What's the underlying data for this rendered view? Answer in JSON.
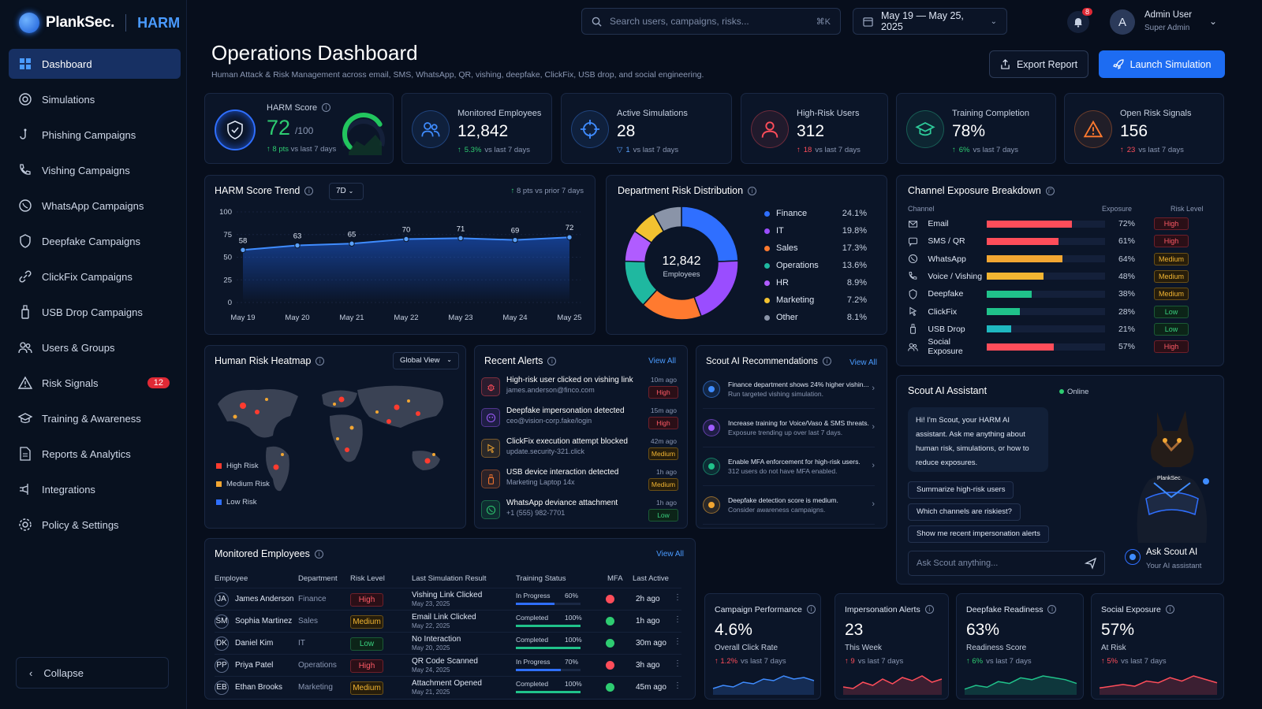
{
  "brand": {
    "name": "PlankSec.",
    "product": "HARM"
  },
  "sidebar": {
    "items": [
      {
        "label": "Dashboard",
        "icon": "grid-icon"
      },
      {
        "label": "Simulations",
        "icon": "target-icon"
      },
      {
        "label": "Phishing Campaigns",
        "icon": "hook-icon"
      },
      {
        "label": "Vishing Campaigns",
        "icon": "phone-icon"
      },
      {
        "label": "WhatsApp Campaigns",
        "icon": "whatsapp-icon"
      },
      {
        "label": "Deepfake Campaigns",
        "icon": "shield-icon"
      },
      {
        "label": "ClickFix Campaigns",
        "icon": "link-icon"
      },
      {
        "label": "USB Drop Campaigns",
        "icon": "usb-icon"
      },
      {
        "label": "Users & Groups",
        "icon": "users-icon"
      },
      {
        "label": "Risk Signals",
        "icon": "warning-icon",
        "badge": "12"
      },
      {
        "label": "Training & Awareness",
        "icon": "graduation-icon"
      },
      {
        "label": "Reports & Analytics",
        "icon": "report-icon"
      },
      {
        "label": "Integrations",
        "icon": "plug-icon"
      },
      {
        "label": "Policy & Settings",
        "icon": "gear-icon"
      }
    ],
    "collapse": "Collapse"
  },
  "topbar": {
    "search_placeholder": "Search users, campaigns, risks...",
    "shortcut": "⌘K",
    "date_range": "May 19 — May 25, 2025",
    "notifications": "8",
    "user_initial": "A",
    "user_name": "Admin User",
    "user_role": "Super Admin"
  },
  "header": {
    "title": "Operations Dashboard",
    "subtitle": "Human Attack & Risk Management across email, SMS, WhatsApp, QR, vishing, deepfake, ClickFix, USB drop, and social engineering.",
    "export": "Export Report",
    "launch": "Launch Simulation"
  },
  "kpis": {
    "harm": {
      "label": "HARM Score",
      "value": "72",
      "max": "/100",
      "delta": "8 pts",
      "delta_sub": "vs last 7 days"
    },
    "cards": [
      {
        "label": "Monitored Employees",
        "value": "12,842",
        "delta": "5.3%",
        "sub": "vs last 7 days",
        "dir": "up-g",
        "arrow": "↑",
        "icon": "users-icon",
        "color": "#3f8cff"
      },
      {
        "label": "Active Simulations",
        "value": "28",
        "delta": "1",
        "sub": "vs last 7 days",
        "dir": "dn-b",
        "arrow": "▽",
        "icon": "crosshair-icon",
        "color": "#3f8cff"
      },
      {
        "label": "High-Risk Users",
        "value": "312",
        "delta": "18",
        "sub": "vs last 7 days",
        "dir": "up-r",
        "arrow": "↑",
        "icon": "user-icon",
        "color": "#ff4d5a"
      },
      {
        "label": "Training Completion",
        "value": "78%",
        "delta": "6%",
        "sub": "vs last 7 days",
        "dir": "up-g",
        "arrow": "↑",
        "icon": "graduation-icon",
        "color": "#2ecc9a"
      },
      {
        "label": "Open Risk Signals",
        "value": "156",
        "delta": "23",
        "sub": "vs last 7 days",
        "dir": "up-r",
        "arrow": "↑",
        "icon": "warning-icon",
        "color": "#ff7a2f"
      }
    ]
  },
  "trend": {
    "title": "HARM Score Trend",
    "period": "7D",
    "note": "8 pts vs prior 7 days"
  },
  "chart_data": [
    {
      "type": "area",
      "title": "HARM Score Trend",
      "categories": [
        "May 19",
        "May 20",
        "May 21",
        "May 22",
        "May 23",
        "May 24",
        "May 25"
      ],
      "values": [
        58,
        63,
        65,
        70,
        71,
        69,
        72
      ],
      "ylim": [
        0,
        100
      ],
      "yticks": [
        0,
        25,
        50,
        75,
        100
      ],
      "grid": true
    },
    {
      "type": "pie",
      "title": "Department Risk Distribution",
      "center_value": "12,842",
      "center_label": "Employees",
      "labels": [
        "Finance",
        "IT",
        "Sales",
        "Operations",
        "HR",
        "Marketing",
        "Other"
      ],
      "values": [
        24.1,
        19.8,
        17.3,
        13.6,
        8.9,
        7.2,
        8.1
      ],
      "value_labels": [
        "24.1%",
        "19.8%",
        "17.3%",
        "13.6%",
        "8.9%",
        "7.2%",
        "8.1%"
      ],
      "colors": [
        "#2f6fff",
        "#9a4dff",
        "#ff7a2f",
        "#1fb8a0",
        "#b05cff",
        "#f2c230",
        "#8a94a8"
      ]
    },
    {
      "type": "bar",
      "title": "Channel Exposure Breakdown",
      "columns": [
        "Channel",
        "Exposure",
        "Risk Level"
      ],
      "rows": [
        {
          "name": "Email",
          "value": 72,
          "label": "72%",
          "risk": "High",
          "color": "#ff4d5a",
          "icon": "mail-icon"
        },
        {
          "name": "SMS / QR",
          "value": 61,
          "label": "61%",
          "risk": "High",
          "color": "#ff4d5a",
          "icon": "chat-icon"
        },
        {
          "name": "WhatsApp",
          "value": 64,
          "label": "64%",
          "risk": "Medium",
          "color": "#f2a632",
          "icon": "whatsapp-icon"
        },
        {
          "name": "Voice / Vishing",
          "value": 48,
          "label": "48%",
          "risk": "Medium",
          "color": "#f2b532",
          "icon": "phone-icon"
        },
        {
          "name": "Deepfake",
          "value": 38,
          "label": "38%",
          "risk": "Medium",
          "color": "#20c28a",
          "icon": "shield-icon"
        },
        {
          "name": "ClickFix",
          "value": 28,
          "label": "28%",
          "risk": "Low",
          "color": "#20c28a",
          "icon": "cursor-icon"
        },
        {
          "name": "USB Drop",
          "value": 21,
          "label": "21%",
          "risk": "Low",
          "color": "#1fb8c0",
          "icon": "usb-icon"
        },
        {
          "name": "Social Exposure",
          "value": 57,
          "label": "57%",
          "risk": "High",
          "color": "#ff4d5a",
          "icon": "users-icon"
        }
      ]
    }
  ],
  "dept": {
    "title": "Department Risk Distribution"
  },
  "channel": {
    "title": "Channel Exposure Breakdown"
  },
  "heatmap": {
    "title": "Human Risk Heatmap",
    "view": "Global View",
    "legend": [
      "High Risk",
      "Medium Risk",
      "Low Risk"
    ]
  },
  "alerts": {
    "title": "Recent Alerts",
    "view_all": "View All",
    "items": [
      {
        "title": "High-risk user clicked on vishing link",
        "sub": "james.anderson@finco.com",
        "time": "10m ago",
        "level": "High",
        "color": "#ff4d5a",
        "icon": "bug-icon"
      },
      {
        "title": "Deepfake impersonation detected",
        "sub": "ceo@vision-corp.fake/login",
        "time": "15m ago",
        "level": "High",
        "color": "#a05cff",
        "icon": "mask-icon"
      },
      {
        "title": "ClickFix execution attempt blocked",
        "sub": "update.security-321.click",
        "time": "42m ago",
        "level": "Medium",
        "color": "#f2a632",
        "icon": "cursor-icon"
      },
      {
        "title": "USB device interaction detected",
        "sub": "Marketing Laptop 14x",
        "time": "1h ago",
        "level": "Medium",
        "color": "#ff7a2f",
        "icon": "usb-icon"
      },
      {
        "title": "WhatsApp deviance attachment",
        "sub": "+1 (555) 982-7701",
        "time": "1h ago",
        "level": "Low",
        "color": "#2ecc71",
        "icon": "whatsapp-icon"
      }
    ]
  },
  "recs": {
    "title": "Scout AI Recommendations",
    "view_all": "View All",
    "items": [
      {
        "title": "Finance department shows 24% higher vishin...",
        "sub": "Run targeted vishing simulation.",
        "color": "#3f8cff"
      },
      {
        "title": "Increase training for Voice/Vaso & SMS threats.",
        "sub": "Exposure trending up over last 7 days.",
        "color": "#a05cff"
      },
      {
        "title": "Enable MFA enforcement for high-risk users.",
        "sub": "312 users do not have MFA enabled.",
        "color": "#20c28a"
      },
      {
        "title": "Deepfake detection score is medium.",
        "sub": "Consider awareness campaigns.",
        "color": "#f2a632"
      }
    ]
  },
  "scout": {
    "title": "Scout AI Assistant",
    "status": "Online",
    "greeting": "Hi! I'm Scout, your HARM AI assistant. Ask me anything about human risk, simulations, or how to reduce exposures.",
    "suggestions": [
      "Summarize high-risk users",
      "Which channels are riskiest?",
      "Show me recent impersonation alerts"
    ],
    "placeholder": "Ask Scout anything...",
    "cta": "Ask Scout AI",
    "cta_sub": "Your AI assistant",
    "mascot_brand": "PlankSec."
  },
  "employees": {
    "title": "Monitored Employees",
    "view_all": "View All",
    "headers": [
      "Employee",
      "Department",
      "Risk Level",
      "Last Simulation Result",
      "Training Status",
      "MFA",
      "Last Active"
    ],
    "rows": [
      {
        "ini": "JA",
        "name": "James Anderson",
        "dept": "Finance",
        "risk": "High",
        "result": "Vishing Link Clicked",
        "date": "May 23, 2025",
        "status": "In Progress",
        "pct": "60%",
        "prog": 0.6,
        "mfa": "#ff4d5a",
        "active": "2h ago"
      },
      {
        "ini": "SM",
        "name": "Sophia Martinez",
        "dept": "Sales",
        "risk": "Medium",
        "result": "Email Link Clicked",
        "date": "May 22, 2025",
        "status": "Completed",
        "pct": "100%",
        "prog": 1,
        "mfa": "#2ecc71",
        "active": "1h ago"
      },
      {
        "ini": "DK",
        "name": "Daniel Kim",
        "dept": "IT",
        "risk": "Low",
        "result": "No Interaction",
        "date": "May 20, 2025",
        "status": "Completed",
        "pct": "100%",
        "prog": 1,
        "mfa": "#2ecc71",
        "active": "30m ago"
      },
      {
        "ini": "PP",
        "name": "Priya Patel",
        "dept": "Operations",
        "risk": "High",
        "result": "QR Code Scanned",
        "date": "May 24, 2025",
        "status": "In Progress",
        "pct": "70%",
        "prog": 0.7,
        "mfa": "#ff4d5a",
        "active": "3h ago"
      },
      {
        "ini": "EB",
        "name": "Ethan Brooks",
        "dept": "Marketing",
        "risk": "Medium",
        "result": "Attachment Opened",
        "date": "May 21, 2025",
        "status": "Completed",
        "pct": "100%",
        "prog": 1,
        "mfa": "#2ecc71",
        "active": "45m ago"
      }
    ]
  },
  "minis": [
    {
      "title": "Campaign Performance",
      "value": "4.6%",
      "sub": "Overall Click Rate",
      "delta": "1.2%",
      "dsub": "vs last 7 days",
      "color": "#3f8cff",
      "spark": [
        4,
        6,
        5,
        8,
        7,
        10,
        9,
        12,
        10,
        11,
        9
      ]
    },
    {
      "title": "Impersonation Alerts",
      "value": "23",
      "sub": "This Week",
      "delta": "9",
      "dsub": "vs last 7 days",
      "color": "#ff4d5a",
      "spark": [
        5,
        4,
        8,
        6,
        10,
        7,
        11,
        9,
        12,
        8,
        10
      ]
    },
    {
      "title": "Deepfake Readiness",
      "value": "63%",
      "sub": "Readiness Score",
      "delta": "6%",
      "dsub": "vs last 7 days",
      "color": "#20c28a",
      "spark": [
        3,
        5,
        4,
        7,
        6,
        9,
        8,
        10,
        9,
        8,
        6
      ],
      "dir": "up-g"
    },
    {
      "title": "Social Exposure",
      "value": "57%",
      "sub": "At Risk",
      "delta": "5%",
      "dsub": "vs last 7 days",
      "color": "#ff4d5a",
      "spark": [
        4,
        5,
        6,
        5,
        8,
        7,
        10,
        8,
        11,
        9,
        7
      ]
    }
  ]
}
